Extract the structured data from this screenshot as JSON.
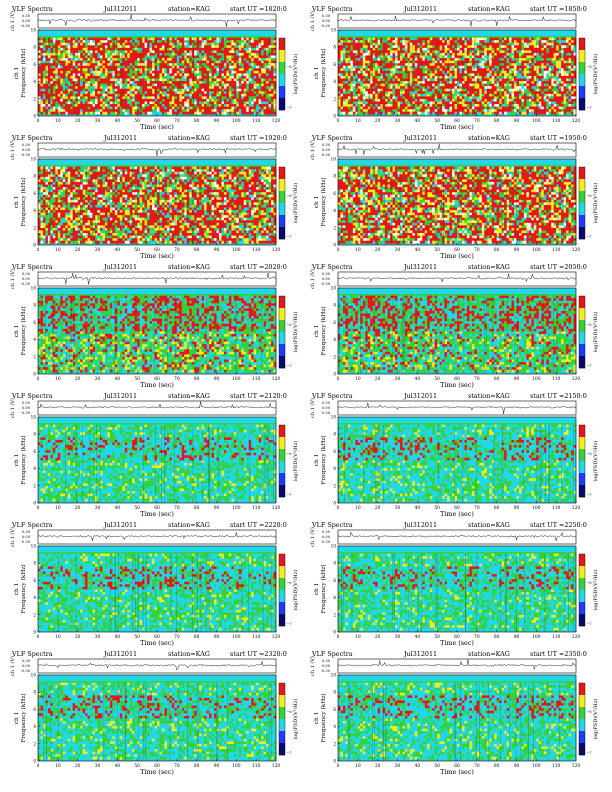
{
  "page": {
    "background": "#ffffff"
  },
  "chart_data": [
    {
      "type": "heatmap",
      "label": "VLF Spectra",
      "date": "Jul312011",
      "station": "station=KAG",
      "start": "start  UT  =1820:0",
      "ch_ylabel": "ch 1 (V)",
      "ch_ticks": [
        "0.30",
        "0.00",
        "-0.30"
      ],
      "ylabel": "Frequency  (kHz)",
      "ylabel_top": "ch 1",
      "yticks": [
        "0",
        "2",
        "4",
        "6",
        "8",
        "10"
      ],
      "xlabel": "Time  (sec)",
      "xticks": [
        "0",
        "10",
        "20",
        "30",
        "40",
        "50",
        "60",
        "70",
        "80",
        "90",
        "100",
        "110",
        "120"
      ],
      "colorbar_label": "log(PSD)(V²/Hz)",
      "colorbar_ticks": [
        "−6",
        "−7"
      ],
      "xlim": [
        0,
        120
      ],
      "ylim": [
        0,
        10
      ],
      "activity": 0.82
    },
    {
      "type": "heatmap",
      "label": "VLF Spectra",
      "date": "Jul312011",
      "station": "station=KAG",
      "start": "start  UT  =1850:0",
      "ch_ylabel": "ch 1 (V)",
      "ch_ticks": [
        "0.30",
        "0.00",
        "-0.30"
      ],
      "ylabel": "Frequency  (kHz)",
      "ylabel_top": "ch 1",
      "yticks": [
        "0",
        "2",
        "4",
        "6",
        "8",
        "10"
      ],
      "xlabel": "Time  (sec)",
      "xticks": [
        "0",
        "10",
        "20",
        "30",
        "40",
        "50",
        "60",
        "70",
        "80",
        "90",
        "100",
        "110",
        "120"
      ],
      "colorbar_label": "log(PSD)(V²/Hz)",
      "colorbar_ticks": [
        "−6",
        "−7"
      ],
      "xlim": [
        0,
        120
      ],
      "ylim": [
        0,
        10
      ],
      "activity": 0.82
    },
    {
      "type": "heatmap",
      "label": "VLF Spectra",
      "date": "Jul312011",
      "station": "station=KAG",
      "start": "start  UT  =1920:0",
      "ch_ylabel": "ch 1 (V)",
      "ch_ticks": [
        "0.30",
        "0.00",
        "-0.30"
      ],
      "ylabel": "Frequency  (kHz)",
      "ylabel_top": "ch 1",
      "yticks": [
        "0",
        "2",
        "4",
        "6",
        "8",
        "10"
      ],
      "xlabel": "Time  (sec)",
      "xticks": [
        "0",
        "10",
        "20",
        "30",
        "40",
        "50",
        "60",
        "70",
        "80",
        "90",
        "100",
        "110",
        "120"
      ],
      "colorbar_label": "log(PSD)(V²/Hz)",
      "colorbar_ticks": [
        "−6",
        "−7"
      ],
      "xlim": [
        0,
        120
      ],
      "ylim": [
        0,
        10
      ],
      "activity": 0.84
    },
    {
      "type": "heatmap",
      "label": "VLF Spectra",
      "date": "Jul312011",
      "station": "station=KAG",
      "start": "start  UT  =1950:0",
      "ch_ylabel": "ch 1 (V)",
      "ch_ticks": [
        "0.30",
        "0.00",
        "-0.30"
      ],
      "ylabel": "Frequency  (kHz)",
      "ylabel_top": "ch 1",
      "yticks": [
        "0",
        "2",
        "4",
        "6",
        "8",
        "10"
      ],
      "xlabel": "Time  (sec)",
      "xticks": [
        "0",
        "10",
        "20",
        "30",
        "40",
        "50",
        "60",
        "70",
        "80",
        "90",
        "100",
        "110",
        "120"
      ],
      "colorbar_label": "log(PSD)(V²/Hz)",
      "colorbar_ticks": [
        "−6",
        "−7"
      ],
      "xlim": [
        0,
        120
      ],
      "ylim": [
        0,
        10
      ],
      "activity": 0.8
    },
    {
      "type": "heatmap",
      "label": "VLF Spectra",
      "date": "Jul312011",
      "station": "station=KAG",
      "start": "start  UT  =2020:0",
      "ch_ylabel": "ch 1 (V)",
      "ch_ticks": [
        "0.30",
        "0.00",
        "-0.30"
      ],
      "ylabel": "Frequency  (kHz)",
      "ylabel_top": "ch 1",
      "yticks": [
        "0",
        "2",
        "4",
        "6",
        "8",
        "10"
      ],
      "xlabel": "Time  (sec)",
      "xticks": [
        "0",
        "10",
        "20",
        "30",
        "40",
        "50",
        "60",
        "70",
        "80",
        "90",
        "100",
        "110",
        "120"
      ],
      "colorbar_label": "log(PSD)(V²/Hz)",
      "colorbar_ticks": [
        "−6",
        "−7"
      ],
      "xlim": [
        0,
        120
      ],
      "ylim": [
        0,
        10
      ],
      "activity": 0.62
    },
    {
      "type": "heatmap",
      "label": "VLF Spectra",
      "date": "Jul312011",
      "station": "station=KAG",
      "start": "start  UT  =2050:0",
      "ch_ylabel": "ch 1 (V)",
      "ch_ticks": [
        "0.30",
        "0.00",
        "-0.30"
      ],
      "ylabel": "Frequency  (kHz)",
      "ylabel_top": "ch 1",
      "yticks": [
        "0",
        "2",
        "4",
        "6",
        "8",
        "10"
      ],
      "xlabel": "Time  (sec)",
      "xticks": [
        "0",
        "10",
        "20",
        "30",
        "40",
        "50",
        "60",
        "70",
        "80",
        "90",
        "100",
        "110",
        "120"
      ],
      "colorbar_label": "log(PSD)(V²/Hz)",
      "colorbar_ticks": [
        "−6",
        "−7"
      ],
      "xlim": [
        0,
        120
      ],
      "ylim": [
        0,
        10
      ],
      "activity": 0.6
    },
    {
      "type": "heatmap",
      "label": "VLF Spectra",
      "date": "Jul312011",
      "station": "station=KAG",
      "start": "start  UT  =2120:0",
      "ch_ylabel": "ch 1 (V)",
      "ch_ticks": [
        "0.30",
        "0.00",
        "-0.30"
      ],
      "ylabel": "Frequency  (kHz)",
      "ylabel_top": "ch 1",
      "yticks": [
        "0",
        "2",
        "4",
        "6",
        "8",
        "10"
      ],
      "xlabel": "Time  (sec)",
      "xticks": [
        "0",
        "10",
        "20",
        "30",
        "40",
        "50",
        "60",
        "70",
        "80",
        "90",
        "100",
        "110",
        "120"
      ],
      "colorbar_label": "log(PSD)(V²/Hz)",
      "colorbar_ticks": [
        "−6",
        "−7"
      ],
      "xlim": [
        0,
        120
      ],
      "ylim": [
        0,
        10
      ],
      "activity": 0.42
    },
    {
      "type": "heatmap",
      "label": "VLF Spectra",
      "date": "Jul312011",
      "station": "station=KAG",
      "start": "start  UT  =2150:0",
      "ch_ylabel": "ch 1 (V)",
      "ch_ticks": [
        "0.30",
        "0.00",
        "-0.30"
      ],
      "ylabel": "Frequency  (kHz)",
      "ylabel_top": "ch 1",
      "yticks": [
        "0",
        "2",
        "4",
        "6",
        "8",
        "10"
      ],
      "xlabel": "Time  (sec)",
      "xticks": [
        "0",
        "10",
        "20",
        "30",
        "40",
        "50",
        "60",
        "70",
        "80",
        "90",
        "100",
        "110",
        "120"
      ],
      "colorbar_label": "log(PSD)(V²/Hz)",
      "colorbar_ticks": [
        "−6",
        "−7"
      ],
      "xlim": [
        0,
        120
      ],
      "ylim": [
        0,
        10
      ],
      "activity": 0.42
    },
    {
      "type": "heatmap",
      "label": "VLF Spectra",
      "date": "Jul312011",
      "station": "station=KAG",
      "start": "start  UT  =2220:0",
      "ch_ylabel": "ch 1 (V)",
      "ch_ticks": [
        "0.30",
        "0.00",
        "-0.30"
      ],
      "ylabel": "Frequency  (kHz)",
      "ylabel_top": "ch 1",
      "yticks": [
        "0",
        "2",
        "4",
        "6",
        "8",
        "10"
      ],
      "xlabel": "Time  (sec)",
      "xticks": [
        "0",
        "10",
        "20",
        "30",
        "40",
        "50",
        "60",
        "70",
        "80",
        "90",
        "100",
        "110",
        "120"
      ],
      "colorbar_label": "log(PSD)(V²/Hz)",
      "colorbar_ticks": [
        "−6",
        "−7"
      ],
      "xlim": [
        0,
        120
      ],
      "ylim": [
        0,
        10
      ],
      "activity": 0.34
    },
    {
      "type": "heatmap",
      "label": "VLF Spectra",
      "date": "Jul312011",
      "station": "station=KAG",
      "start": "start  UT  =2250:0",
      "ch_ylabel": "ch 1 (V)",
      "ch_ticks": [
        "0.30",
        "0.00",
        "-0.30"
      ],
      "ylabel": "Frequency  (kHz)",
      "ylabel_top": "ch 1",
      "yticks": [
        "0",
        "2",
        "4",
        "6",
        "8",
        "10"
      ],
      "xlabel": "Time  (sec)",
      "xticks": [
        "0",
        "10",
        "20",
        "30",
        "40",
        "50",
        "60",
        "70",
        "80",
        "90",
        "100",
        "110",
        "120"
      ],
      "colorbar_label": "log(PSD)(V²/Hz)",
      "colorbar_ticks": [
        "−6",
        "−7"
      ],
      "xlim": [
        0,
        120
      ],
      "ylim": [
        0,
        10
      ],
      "activity": 0.34
    },
    {
      "type": "heatmap",
      "label": "VLF Spectra",
      "date": "Jul312011",
      "station": "station=KAG",
      "start": "start  UT  =2320:0",
      "ch_ylabel": "ch 1 (V)",
      "ch_ticks": [
        "0.30",
        "0.00",
        "-0.30"
      ],
      "ylabel": "Frequency  (kHz)",
      "ylabel_top": "ch 1",
      "yticks": [
        "0",
        "2",
        "4",
        "6",
        "8",
        "10"
      ],
      "xlabel": "Time  (sec)",
      "xticks": [
        "0",
        "10",
        "20",
        "30",
        "40",
        "50",
        "60",
        "70",
        "80",
        "90",
        "100",
        "110",
        "120"
      ],
      "colorbar_label": "log(PSD)(V²/Hz)",
      "colorbar_ticks": [
        "−6",
        "−7"
      ],
      "xlim": [
        0,
        120
      ],
      "ylim": [
        0,
        10
      ],
      "activity": 0.3
    },
    {
      "type": "heatmap",
      "label": "VLF Spectra",
      "date": "Jul312011",
      "station": "station=KAG",
      "start": "start  UT  =2350:0",
      "ch_ylabel": "ch 1 (V)",
      "ch_ticks": [
        "0.30",
        "0.00",
        "-0.30"
      ],
      "ylabel": "Frequency  (kHz)",
      "ylabel_top": "ch 1",
      "yticks": [
        "0",
        "2",
        "4",
        "6",
        "8",
        "10"
      ],
      "xlabel": "Time  (sec)",
      "xticks": [
        "0",
        "10",
        "20",
        "30",
        "40",
        "50",
        "60",
        "70",
        "80",
        "90",
        "100",
        "110",
        "120"
      ],
      "colorbar_label": "log(PSD)(V²/Hz)",
      "colorbar_ticks": [
        "−6",
        "−7"
      ],
      "xlim": [
        0,
        120
      ],
      "ylim": [
        0,
        10
      ],
      "activity": 0.3
    }
  ],
  "colors": {
    "low": "#1e3cff",
    "cyan": "#22d8e8",
    "green": "#36d23a",
    "yellow": "#f4ee1c",
    "red": "#e41818",
    "white": "#ffffff"
  }
}
